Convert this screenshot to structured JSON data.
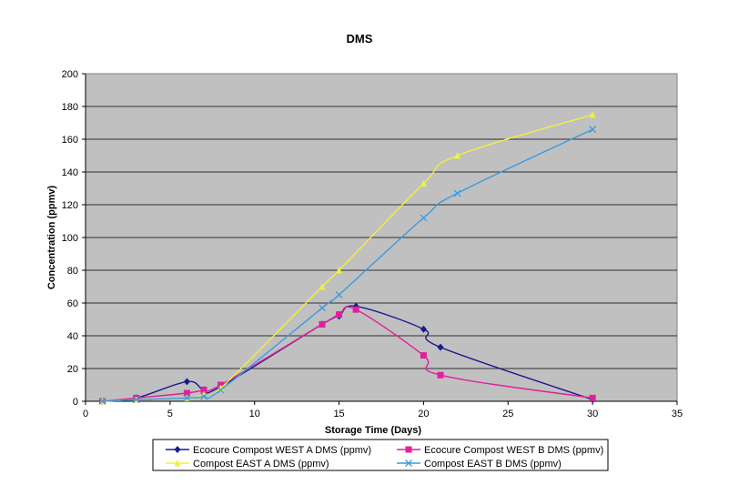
{
  "chart_data": {
    "type": "line",
    "title": "DMS",
    "xlabel": "Storage Time (Days)",
    "ylabel": "Concentration (ppmv)",
    "xlim": [
      0,
      35
    ],
    "ylim": [
      0,
      200
    ],
    "x_ticks": [
      0,
      5,
      10,
      15,
      20,
      25,
      30,
      35
    ],
    "y_ticks": [
      0,
      20,
      40,
      60,
      80,
      100,
      120,
      140,
      160,
      180,
      200
    ],
    "grid": "horizontal",
    "plot_background": "#c0c0c0",
    "legend_position": "bottom",
    "series": [
      {
        "name": "Ecocure Compost WEST A DMS (ppmv)",
        "color": "#1a1a8c",
        "marker": "diamond",
        "x": [
          1,
          3,
          6,
          7,
          8,
          14,
          15,
          16,
          20,
          21,
          30
        ],
        "y": [
          0,
          2,
          12,
          7,
          9,
          47,
          52,
          58,
          44,
          33,
          1
        ]
      },
      {
        "name": "Ecocure Compost WEST B DMS (ppmv)",
        "color": "#e0209a",
        "marker": "square",
        "x": [
          1,
          3,
          6,
          7,
          8,
          14,
          15,
          16,
          20,
          21,
          30
        ],
        "y": [
          0,
          2,
          5,
          7,
          10,
          47,
          53,
          56,
          28,
          16,
          2
        ]
      },
      {
        "name": "Compost EAST A DMS (ppmv)",
        "color": "#f0f040",
        "marker": "triangle",
        "x": [
          1,
          3,
          6,
          7,
          8,
          14,
          15,
          20,
          22,
          30
        ],
        "y": [
          0,
          1,
          2,
          4,
          8,
          70,
          80,
          133,
          150,
          175
        ]
      },
      {
        "name": "Compost EAST B DMS (ppmv)",
        "color": "#3a9be0",
        "marker": "x",
        "x": [
          1,
          3,
          6,
          7,
          8,
          14,
          15,
          20,
          22,
          30
        ],
        "y": [
          0,
          1,
          2,
          3,
          7,
          57,
          65,
          112,
          127,
          166
        ]
      }
    ]
  }
}
